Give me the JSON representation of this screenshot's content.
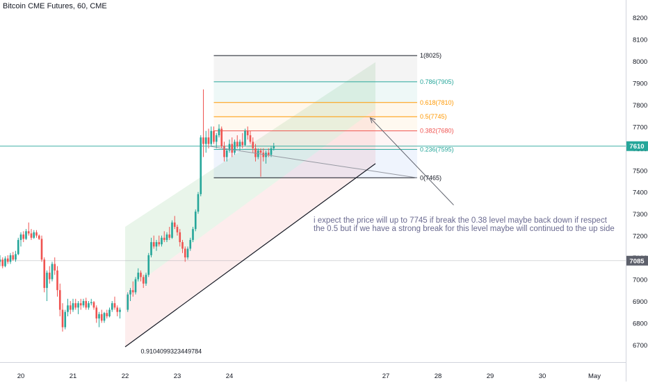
{
  "header": {
    "title": "Bitcoin CME Futures, 60, CME"
  },
  "annotation": {
    "line1": "i expect the price will up to 7745  if break the 0.38 level maybe back down if respect",
    "line2": "the 0.5 but if we have a strong break for this level maybe will continued to the up side"
  },
  "colors": {
    "up": "#26a69a",
    "down": "#ef5350",
    "price_line": "#26a69a",
    "ref_line": "#9598a1"
  },
  "chart_data": {
    "type": "candlestick",
    "title": "Bitcoin CME Futures, 60, CME",
    "ylim": [
      6620,
      8280
    ],
    "y_ticks": [
      6700,
      6800,
      6900,
      7000,
      7100,
      7200,
      7300,
      7400,
      7500,
      7600,
      7700,
      7800,
      7900,
      8000,
      8100,
      8200
    ],
    "x_ticks": [
      {
        "label": "20",
        "day": 20
      },
      {
        "label": "21",
        "day": 21
      },
      {
        "label": "22",
        "day": 22
      },
      {
        "label": "23",
        "day": 23
      },
      {
        "label": "24",
        "day": 24
      },
      {
        "label": "27",
        "day": 27
      },
      {
        "label": "28",
        "day": 28
      },
      {
        "label": "29",
        "day": 29
      },
      {
        "label": "30",
        "day": 30
      },
      {
        "label": "May",
        "day": 31
      }
    ],
    "xlim": [
      19.6,
      31.6
    ],
    "last_price": 7610,
    "last_price_label": "7610",
    "ref_price": 7085,
    "ref_price_label": "7085",
    "candles": [
      [
        19.6,
        7080,
        7110,
        7060,
        7090
      ],
      [
        19.65,
        7090,
        7100,
        7050,
        7060
      ],
      [
        19.7,
        7060,
        7105,
        7055,
        7095
      ],
      [
        19.75,
        7095,
        7110,
        7070,
        7080
      ],
      [
        19.8,
        7080,
        7120,
        7070,
        7110
      ],
      [
        19.85,
        7110,
        7125,
        7085,
        7090
      ],
      [
        19.9,
        7090,
        7130,
        7080,
        7115
      ],
      [
        19.95,
        7115,
        7190,
        7110,
        7180
      ],
      [
        20.0,
        7180,
        7215,
        7150,
        7205
      ],
      [
        20.05,
        7205,
        7220,
        7170,
        7185
      ],
      [
        20.1,
        7185,
        7230,
        7180,
        7220
      ],
      [
        20.15,
        7220,
        7260,
        7200,
        7210
      ],
      [
        20.2,
        7210,
        7230,
        7180,
        7190
      ],
      [
        20.25,
        7190,
        7225,
        7185,
        7215
      ],
      [
        20.3,
        7215,
        7225,
        7190,
        7200
      ],
      [
        20.35,
        7200,
        7205,
        7180,
        7185
      ],
      [
        20.4,
        7185,
        7200,
        7080,
        7090
      ],
      [
        20.45,
        7090,
        7100,
        6940,
        6960
      ],
      [
        20.5,
        6960,
        7040,
        6900,
        7030
      ],
      [
        20.55,
        7030,
        7060,
        6980,
        7000
      ],
      [
        20.6,
        7000,
        7080,
        6990,
        7070
      ],
      [
        20.65,
        7070,
        7100,
        7020,
        7040
      ],
      [
        20.7,
        7040,
        7060,
        6920,
        6950
      ],
      [
        20.75,
        6950,
        6980,
        6830,
        6860
      ],
      [
        20.8,
        6860,
        6890,
        6760,
        6780
      ],
      [
        20.85,
        6780,
        6860,
        6770,
        6850
      ],
      [
        20.9,
        6850,
        6910,
        6830,
        6880
      ],
      [
        20.95,
        6880,
        6900,
        6840,
        6860
      ],
      [
        21.0,
        6860,
        6910,
        6850,
        6890
      ],
      [
        21.05,
        6890,
        6910,
        6860,
        6870
      ],
      [
        21.1,
        6870,
        6900,
        6840,
        6890
      ],
      [
        21.15,
        6890,
        6910,
        6860,
        6880
      ],
      [
        21.2,
        6880,
        6910,
        6870,
        6900
      ],
      [
        21.25,
        6900,
        6915,
        6860,
        6870
      ],
      [
        21.3,
        6870,
        6900,
        6860,
        6890
      ],
      [
        21.35,
        6890,
        6910,
        6880,
        6895
      ],
      [
        21.4,
        6895,
        6900,
        6860,
        6870
      ],
      [
        21.45,
        6870,
        6880,
        6800,
        6820
      ],
      [
        21.5,
        6820,
        6850,
        6780,
        6840
      ],
      [
        21.55,
        6840,
        6860,
        6800,
        6810
      ],
      [
        21.6,
        6810,
        6850,
        6800,
        6845
      ],
      [
        21.65,
        6845,
        6860,
        6820,
        6830
      ],
      [
        21.7,
        6830,
        6870,
        6825,
        6860
      ],
      [
        21.75,
        6860,
        6900,
        6850,
        6890
      ],
      [
        21.8,
        6890,
        6920,
        6860,
        6870
      ],
      [
        21.85,
        6870,
        6880,
        6830,
        6850
      ],
      [
        21.9,
        6850,
        6870,
        6820,
        6860
      ],
      [
        22.05,
        6860,
        6940,
        6850,
        6930
      ],
      [
        22.1,
        6930,
        6960,
        6900,
        6950
      ],
      [
        22.15,
        6950,
        6990,
        6920,
        6940
      ],
      [
        22.2,
        6940,
        7010,
        6930,
        7000
      ],
      [
        22.25,
        7000,
        7050,
        6990,
        7030
      ],
      [
        22.3,
        7030,
        7040,
        6990,
        7010
      ],
      [
        22.35,
        7010,
        7020,
        6960,
        6980
      ],
      [
        22.4,
        6980,
        7030,
        6970,
        7020
      ],
      [
        22.45,
        7020,
        7120,
        7010,
        7110
      ],
      [
        22.5,
        7110,
        7190,
        7100,
        7170
      ],
      [
        22.55,
        7170,
        7200,
        7140,
        7150
      ],
      [
        22.6,
        7150,
        7180,
        7130,
        7170
      ],
      [
        22.65,
        7170,
        7200,
        7150,
        7160
      ],
      [
        22.7,
        7160,
        7200,
        7150,
        7190
      ],
      [
        22.75,
        7190,
        7220,
        7170,
        7180
      ],
      [
        22.8,
        7180,
        7215,
        7170,
        7205
      ],
      [
        22.85,
        7205,
        7240,
        7180,
        7190
      ],
      [
        22.9,
        7190,
        7270,
        7185,
        7260
      ],
      [
        22.95,
        7260,
        7290,
        7230,
        7240
      ],
      [
        23.0,
        7240,
        7250,
        7200,
        7215
      ],
      [
        23.05,
        7215,
        7230,
        7150,
        7170
      ],
      [
        23.1,
        7170,
        7180,
        7120,
        7140
      ],
      [
        23.15,
        7140,
        7150,
        7080,
        7100
      ],
      [
        23.2,
        7100,
        7150,
        7090,
        7140
      ],
      [
        23.25,
        7140,
        7190,
        7130,
        7180
      ],
      [
        23.3,
        7180,
        7240,
        7170,
        7230
      ],
      [
        23.35,
        7230,
        7320,
        7220,
        7310
      ],
      [
        23.4,
        7310,
        7400,
        7300,
        7390
      ],
      [
        23.45,
        7390,
        7660,
        7380,
        7650
      ],
      [
        23.5,
        7650,
        7870,
        7560,
        7620
      ],
      [
        23.55,
        7620,
        7680,
        7580,
        7650
      ],
      [
        23.6,
        7650,
        7690,
        7600,
        7620
      ],
      [
        23.65,
        7620,
        7700,
        7610,
        7680
      ],
      [
        23.7,
        7680,
        7700,
        7620,
        7630
      ],
      [
        23.75,
        7630,
        7670,
        7600,
        7660
      ],
      [
        23.8,
        7660,
        7710,
        7650,
        7690
      ],
      [
        23.85,
        7690,
        7700,
        7600,
        7610
      ],
      [
        23.9,
        7610,
        7630,
        7540,
        7560
      ],
      [
        23.95,
        7560,
        7600,
        7540,
        7590
      ],
      [
        24.0,
        7590,
        7640,
        7580,
        7620
      ],
      [
        24.05,
        7620,
        7650,
        7560,
        7580
      ],
      [
        24.1,
        7580,
        7640,
        7570,
        7630
      ],
      [
        24.15,
        7630,
        7660,
        7600,
        7610
      ],
      [
        24.2,
        7610,
        7640,
        7590,
        7630
      ],
      [
        24.25,
        7630,
        7670,
        7600,
        7615
      ],
      [
        24.3,
        7615,
        7690,
        7610,
        7680
      ],
      [
        24.35,
        7680,
        7700,
        7640,
        7660
      ],
      [
        24.4,
        7660,
        7680,
        7620,
        7630
      ],
      [
        24.45,
        7630,
        7650,
        7580,
        7600
      ],
      [
        24.5,
        7600,
        7620,
        7540,
        7560
      ],
      [
        24.55,
        7560,
        7600,
        7550,
        7590
      ],
      [
        24.6,
        7590,
        7600,
        7470,
        7580
      ],
      [
        24.65,
        7580,
        7600,
        7540,
        7560
      ],
      [
        24.7,
        7560,
        7590,
        7530,
        7580
      ],
      [
        24.75,
        7580,
        7600,
        7560,
        7570
      ],
      [
        24.8,
        7570,
        7610,
        7560,
        7600
      ],
      [
        24.85,
        7600,
        7625,
        7590,
        7610
      ]
    ],
    "fib_levels": [
      {
        "ratio": "0",
        "price": 7465,
        "label": "0(7465)",
        "color": "#131722"
      },
      {
        "ratio": "0.236",
        "price": 7595,
        "label": "0.236(7595)",
        "color": "#26a69a"
      },
      {
        "ratio": "0.382",
        "price": 7680,
        "label": "0.382(7680)",
        "color": "#ef5350"
      },
      {
        "ratio": "0.5",
        "price": 7745,
        "label": "0.5(7745)",
        "color": "#ff9800"
      },
      {
        "ratio": "0.618",
        "price": 7810,
        "label": "0.618(7810)",
        "color": "#ff9800"
      },
      {
        "ratio": "0.786",
        "price": 7905,
        "label": "0.786(7905)",
        "color": "#26a69a"
      },
      {
        "ratio": "1",
        "price": 8025,
        "label": "1(8025)",
        "color": "#131722"
      }
    ],
    "fib_x_range": [
      23.7,
      27.6
    ],
    "channel": {
      "x0": 22.0,
      "x1": 26.8,
      "bottom_start": 6690,
      "bottom_end": 7530,
      "top_start": 7240,
      "top_end": 7995,
      "mid_start": 6940,
      "mid_end": 7780
    },
    "trendline": {
      "x0": 22.0,
      "y0": 6690,
      "x1": 26.8,
      "y1": 7530
    },
    "projection_line": {
      "x0": 23.6,
      "y0": 7610,
      "x1": 27.6,
      "y1": 7465
    },
    "arrow": {
      "x0": 28.3,
      "y0": 7340,
      "x1": 26.7,
      "y1": 7740
    },
    "trend_label": "0.9104099323449784",
    "trend_label_anchor": {
      "x": 22.3,
      "y": 6660
    }
  }
}
